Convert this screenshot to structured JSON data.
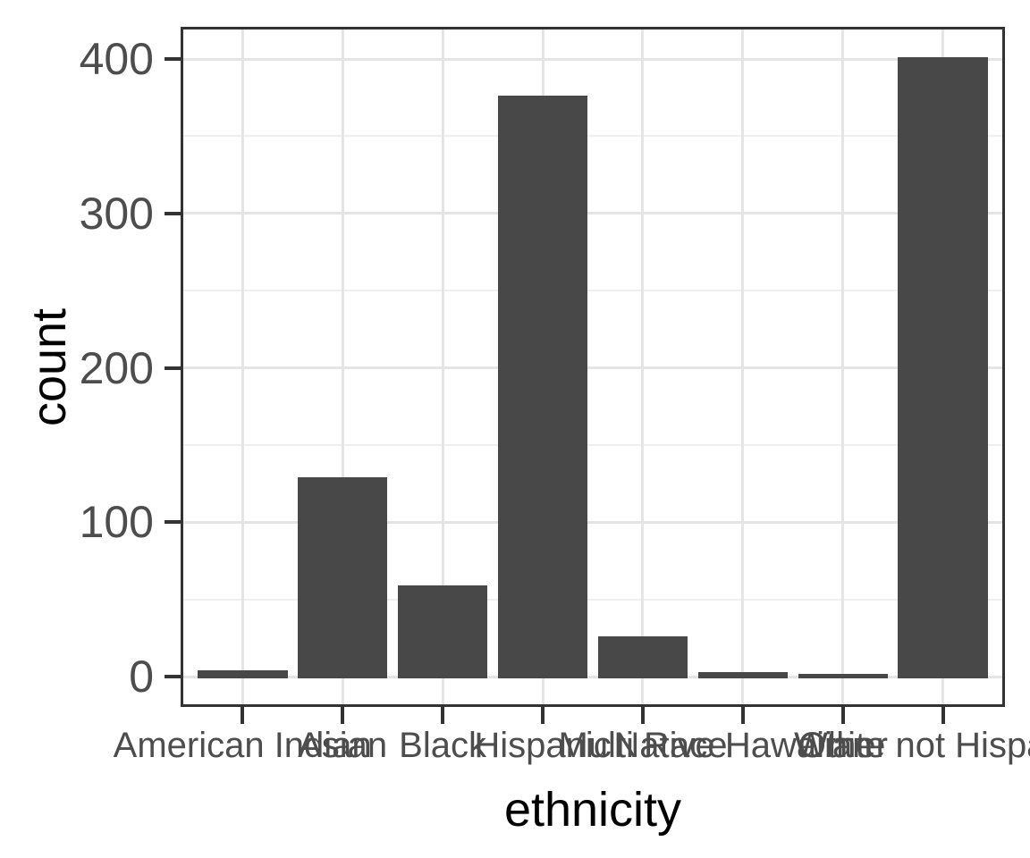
{
  "chart_data": {
    "type": "bar",
    "title": "",
    "xlabel": "ethnicity",
    "ylabel": "count",
    "categories": [
      "American Indian",
      "Asian",
      "Black",
      "Hispanic",
      "Multi Race",
      "Native Hawaiian",
      "Other",
      "White not Hispanic"
    ],
    "values": [
      4,
      129,
      59,
      376,
      26,
      3,
      2,
      401
    ],
    "y_major_ticks": [
      0,
      100,
      200,
      300,
      400
    ],
    "y_minor_gridlines": [
      50,
      150,
      250,
      350
    ],
    "ylim": [
      0,
      420
    ],
    "grid": "on",
    "legend": "none",
    "bar_width_fraction": 0.9,
    "colors": {
      "bar_fill": "#484848",
      "axis_text": "#4d4d4d",
      "axis_title": "#000000",
      "panel_border": "#333333",
      "tick_mark": "#333333",
      "grid_major": "#e5e5e5",
      "grid_minor": "#efefef",
      "background": "#ffffff"
    }
  }
}
